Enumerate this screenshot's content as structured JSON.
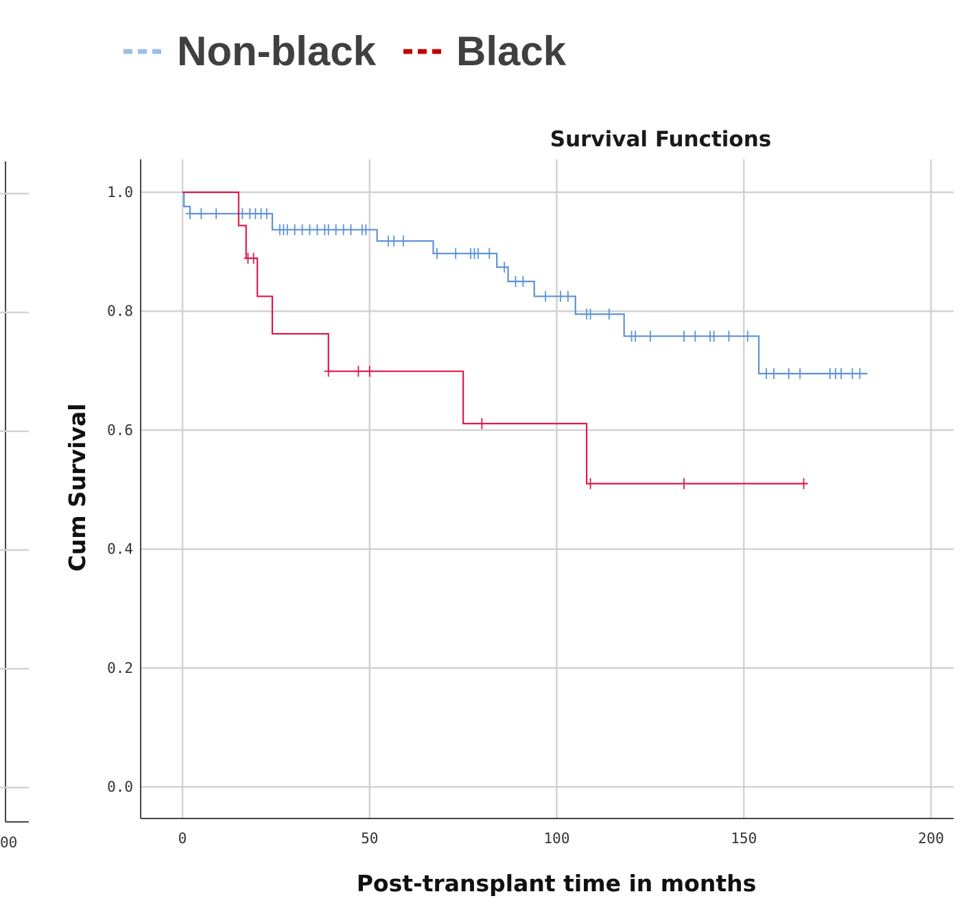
{
  "legend": {
    "items": [
      {
        "label": "Non-black",
        "color": "#9bbfe5"
      },
      {
        "label": "Black",
        "color": "#c00000"
      }
    ]
  },
  "left_fragment": {
    "tick_label": "00"
  },
  "chart_data": {
    "type": "line",
    "title": "Survival Functions",
    "xlabel": "Post-transplant time in months",
    "ylabel": "Cum Survival",
    "xlim": [
      -11,
      190
    ],
    "ylim": [
      -0.055,
      1.055
    ],
    "x_ticks": [
      0,
      50,
      100,
      150,
      200
    ],
    "y_ticks": [
      0.0,
      0.2,
      0.4,
      0.6,
      0.8,
      1.0
    ],
    "y_tick_labels": [
      "0.0",
      "0.2",
      "0.4",
      "0.6",
      "0.8",
      "1.0"
    ],
    "grid": true,
    "step": true,
    "series": [
      {
        "name": "Non-black",
        "color": "#5b93d6",
        "steps": [
          [
            0,
            1.0
          ],
          [
            0.4,
            0.976
          ],
          [
            2,
            0.964
          ],
          [
            24,
            0.937
          ],
          [
            52,
            0.918
          ],
          [
            67,
            0.897
          ],
          [
            84,
            0.874
          ],
          [
            87,
            0.85
          ],
          [
            94,
            0.825
          ],
          [
            105,
            0.795
          ],
          [
            118,
            0.758
          ],
          [
            154,
            0.695
          ],
          [
            183,
            0.695
          ]
        ],
        "censored": [
          [
            2,
            0.964
          ],
          [
            5,
            0.964
          ],
          [
            9,
            0.964
          ],
          [
            16,
            0.964
          ],
          [
            18,
            0.964
          ],
          [
            19.5,
            0.964
          ],
          [
            21,
            0.964
          ],
          [
            22.5,
            0.964
          ],
          [
            26,
            0.937
          ],
          [
            27,
            0.937
          ],
          [
            28,
            0.937
          ],
          [
            30,
            0.937
          ],
          [
            32,
            0.937
          ],
          [
            34,
            0.937
          ],
          [
            36,
            0.937
          ],
          [
            38,
            0.937
          ],
          [
            39,
            0.937
          ],
          [
            41,
            0.937
          ],
          [
            43,
            0.937
          ],
          [
            45,
            0.937
          ],
          [
            48,
            0.937
          ],
          [
            49,
            0.937
          ],
          [
            55,
            0.918
          ],
          [
            56.5,
            0.918
          ],
          [
            59,
            0.918
          ],
          [
            68,
            0.897
          ],
          [
            73,
            0.897
          ],
          [
            77,
            0.897
          ],
          [
            78,
            0.897
          ],
          [
            79,
            0.897
          ],
          [
            82,
            0.897
          ],
          [
            86,
            0.874
          ],
          [
            89,
            0.85
          ],
          [
            91,
            0.85
          ],
          [
            97,
            0.825
          ],
          [
            101,
            0.825
          ],
          [
            103,
            0.825
          ],
          [
            108,
            0.795
          ],
          [
            109,
            0.795
          ],
          [
            114,
            0.795
          ],
          [
            120,
            0.758
          ],
          [
            121,
            0.758
          ],
          [
            125,
            0.758
          ],
          [
            134,
            0.758
          ],
          [
            137,
            0.758
          ],
          [
            141,
            0.758
          ],
          [
            142,
            0.758
          ],
          [
            146,
            0.758
          ],
          [
            151,
            0.758
          ],
          [
            156,
            0.695
          ],
          [
            158,
            0.695
          ],
          [
            162,
            0.695
          ],
          [
            165,
            0.695
          ],
          [
            173,
            0.695
          ],
          [
            174.5,
            0.695
          ],
          [
            176,
            0.695
          ],
          [
            179,
            0.695
          ],
          [
            181,
            0.695
          ]
        ]
      },
      {
        "name": "Black",
        "color": "#dc1a4b",
        "steps": [
          [
            0,
            1.0
          ],
          [
            15,
            0.944
          ],
          [
            17,
            0.889
          ],
          [
            20,
            0.825
          ],
          [
            24,
            0.762
          ],
          [
            39,
            0.699
          ],
          [
            75,
            0.611
          ],
          [
            108,
            0.51
          ],
          [
            167,
            0.51
          ]
        ],
        "censored": [
          [
            17.5,
            0.889
          ],
          [
            19,
            0.889
          ],
          [
            39,
            0.699
          ],
          [
            47,
            0.699
          ],
          [
            50,
            0.699
          ],
          [
            80,
            0.611
          ],
          [
            109,
            0.51
          ],
          [
            134,
            0.51
          ],
          [
            166,
            0.51
          ]
        ]
      }
    ]
  }
}
